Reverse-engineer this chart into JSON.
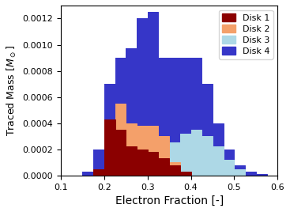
{
  "title": "",
  "xlabel": "Electron Fraction [-]",
  "ylabel": "Traced Mass [$M_\\odot$]",
  "xlim": [
    0.1,
    0.6
  ],
  "ylim": [
    0.0,
    0.0013
  ],
  "bin_edges": [
    0.1,
    0.125,
    0.15,
    0.175,
    0.2,
    0.225,
    0.25,
    0.275,
    0.3,
    0.325,
    0.35,
    0.375,
    0.4,
    0.425,
    0.45,
    0.475,
    0.5,
    0.525,
    0.55,
    0.575,
    0.6
  ],
  "disk1_values": [
    0.0,
    0.0,
    0.0,
    5e-05,
    0.00043,
    0.00035,
    0.00022,
    0.0002,
    0.00018,
    0.00013,
    8e-05,
    3e-05,
    0.0,
    0.0,
    0.0,
    0.0,
    0.0,
    0.0,
    0.0,
    0.0
  ],
  "disk2_values": [
    0.0,
    0.0,
    0.0,
    0.0,
    8e-05,
    0.00055,
    0.0004,
    0.00038,
    0.00038,
    0.0003,
    0.0001,
    2e-05,
    0.0,
    0.0,
    0.0,
    0.0,
    0.0,
    0.0,
    0.0,
    0.0
  ],
  "disk3_values": [
    0.0,
    0.0,
    0.0,
    0.0,
    0.0,
    0.0,
    0.0,
    0.0,
    5e-05,
    0.00015,
    0.00025,
    0.00032,
    0.00035,
    0.0003,
    0.00022,
    0.00012,
    5e-05,
    0.0,
    0.0,
    0.0
  ],
  "disk4_values": [
    0.0,
    0.0,
    3e-05,
    0.0002,
    0.0007,
    0.0009,
    0.00097,
    0.0012,
    0.00125,
    0.0009,
    0.0009,
    0.0009,
    0.0009,
    0.0007,
    0.0004,
    0.0002,
    8e-05,
    3e-05,
    1e-05,
    0.0
  ],
  "disk1_color": "#8B0000",
  "disk2_color": "#F4A06A",
  "disk3_color": "#ADD8E6",
  "disk4_color": "#3636C8",
  "disk1_label": "Disk 1",
  "disk2_label": "Disk 2",
  "disk3_label": "Disk 3",
  "disk4_label": "Disk 4",
  "legend_loc": "upper right",
  "yticks": [
    0.0,
    0.0002,
    0.0004,
    0.0006,
    0.0008,
    0.001,
    0.0012
  ],
  "xticks": [
    0.1,
    0.2,
    0.3,
    0.4,
    0.5,
    0.6
  ]
}
